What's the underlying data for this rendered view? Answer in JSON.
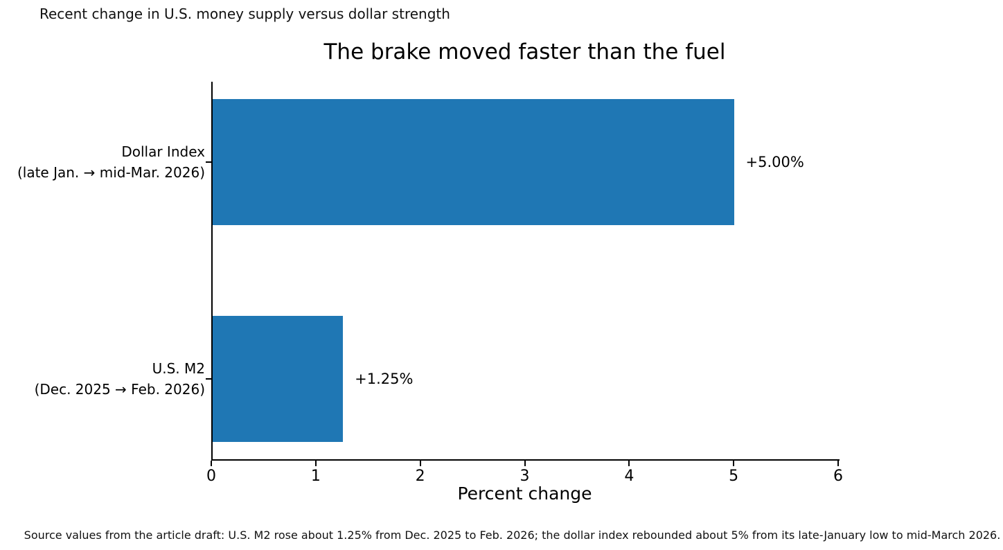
{
  "figure": {
    "supertitle": "Recent change in U.S. money supply versus dollar strength",
    "source_note": "Source values from the article draft: U.S. M2 rose about 1.25% from Dec. 2025 to Feb. 2026; the dollar index rebounded about 5% from its late-January low to mid-March 2026."
  },
  "chart_data": {
    "type": "bar",
    "orientation": "horizontal",
    "title": "The brake moved faster than the fuel",
    "xlabel": "Percent change",
    "xlim": [
      0,
      6
    ],
    "xticks": [
      "0",
      "1",
      "2",
      "3",
      "4",
      "5",
      "6"
    ],
    "grid": false,
    "legend": false,
    "bar_color": "#1f77b4",
    "categories": [
      "Dollar Index\n(late Jan. → mid-Mar. 2026)",
      "U.S. M2\n(Dec. 2025 → Feb. 2026)"
    ],
    "values": [
      5.0,
      1.25
    ],
    "bars": [
      {
        "label_line1": "Dollar Index",
        "label_line2": "(late Jan. → mid-Mar. 2026)",
        "value": 5.0,
        "value_label": "+5.00%"
      },
      {
        "label_line1": "U.S. M2",
        "label_line2": "(Dec. 2025 → Feb. 2026)",
        "value": 1.25,
        "value_label": "+1.25%"
      }
    ]
  }
}
